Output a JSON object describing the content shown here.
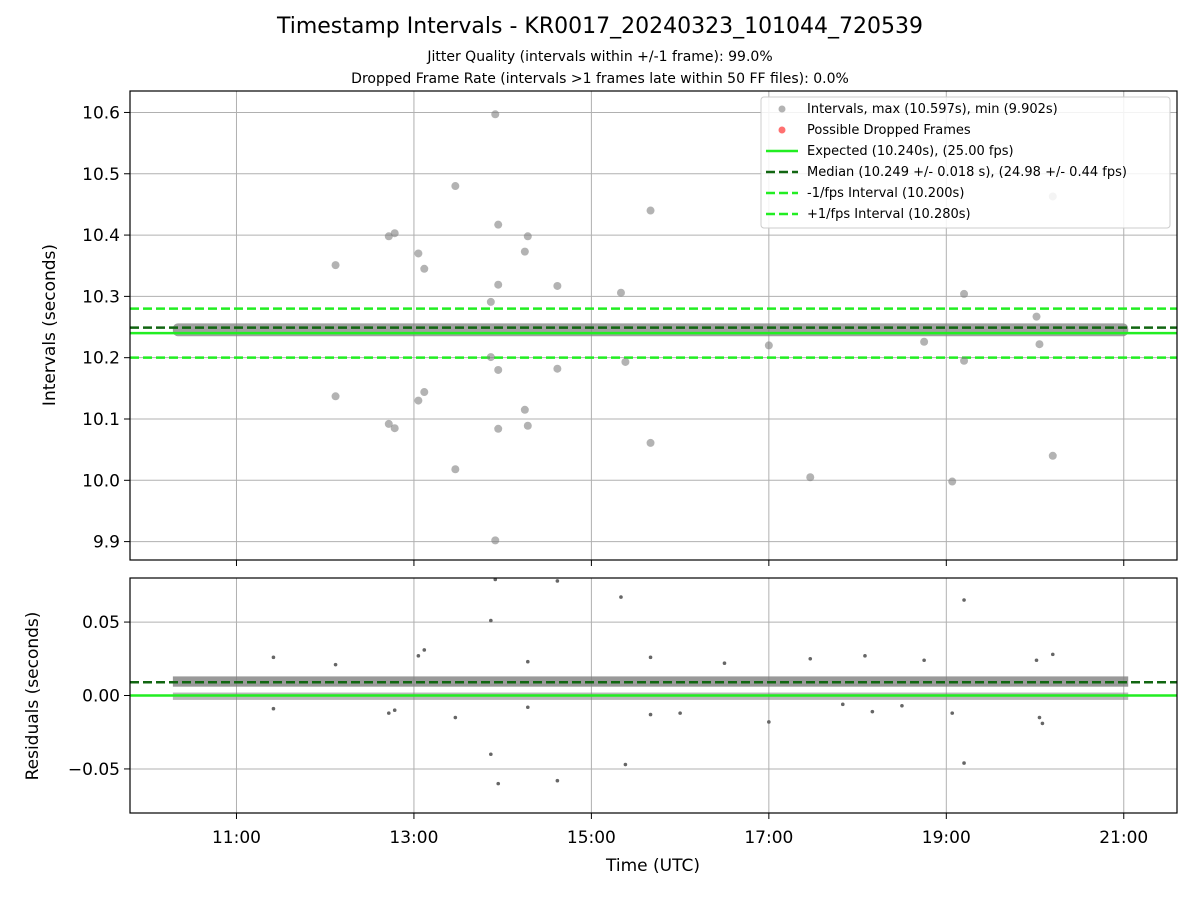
{
  "title": "Timestamp Intervals - KR0017_20240323_101044_720539",
  "subtitle_1": "Jitter Quality (intervals within +/-1 frame): 99.0%",
  "subtitle_2": "Dropped Frame Rate (intervals >1 frames late within 50 FF files): 0.0%",
  "colors": {
    "points": "#808080",
    "dropped": "#ff3333",
    "expected": "#22ee22",
    "median": "#116611",
    "bounds": "#22ee22",
    "grid": "#b0b0b0"
  },
  "chart_data": [
    {
      "type": "scatter",
      "panel": "intervals",
      "xlabel": "",
      "ylabel": "Intervals (seconds)",
      "xlim": [
        "09:48",
        "21:36"
      ],
      "ylim": [
        9.87,
        10.635
      ],
      "yticks": [
        "9.9",
        "10.0",
        "10.1",
        "10.2",
        "10.3",
        "10.4",
        "10.5",
        "10.6"
      ],
      "grid": true,
      "legend_position": "top-right",
      "legend": [
        "Intervals, max (10.597s), min (9.902s)",
        "Possible Dropped Frames",
        "Expected (10.240s), (25.00 fps)",
        "Median (10.249 +/- 0.018 s), (24.98 +/- 0.44 fps)",
        "-1/fps Interval (10.200s)",
        "+1/fps Interval (10.280s)"
      ],
      "reference_lines": {
        "expected": 10.24,
        "median": 10.249,
        "minus_one_frame": 10.2,
        "plus_one_frame": 10.28
      },
      "band": {
        "x_start": "10:17",
        "x_end": "21:03",
        "y_min": 10.235,
        "y_max": 10.256
      },
      "series": [
        {
          "name": "Intervals, max (10.597s), min (9.902s)",
          "points": [
            [
              "13:55",
              10.597
            ],
            [
              "13:55",
              9.902
            ],
            [
              "13:28",
              10.48
            ],
            [
              "13:57",
              10.417
            ],
            [
              "14:17",
              10.398
            ],
            [
              "12:47",
              10.403
            ],
            [
              "12:43",
              10.398
            ],
            [
              "12:07",
              10.351
            ],
            [
              "13:03",
              10.37
            ],
            [
              "13:07",
              10.345
            ],
            [
              "14:15",
              10.373
            ],
            [
              "15:40",
              10.44
            ],
            [
              "13:57",
              10.319
            ],
            [
              "14:37",
              10.317
            ],
            [
              "15:20",
              10.306
            ],
            [
              "13:52",
              10.291
            ],
            [
              "19:12",
              10.304
            ],
            [
              "20:12",
              10.463
            ],
            [
              "12:07",
              10.137
            ],
            [
              "12:43",
              10.092
            ],
            [
              "12:47",
              10.085
            ],
            [
              "13:03",
              10.13
            ],
            [
              "13:07",
              10.144
            ],
            [
              "13:28",
              10.018
            ],
            [
              "13:57",
              10.084
            ],
            [
              "13:57",
              10.18
            ],
            [
              "14:15",
              10.115
            ],
            [
              "14:17",
              10.089
            ],
            [
              "14:37",
              10.182
            ],
            [
              "15:40",
              10.061
            ],
            [
              "17:28",
              10.005
            ],
            [
              "19:04",
              9.998
            ],
            [
              "20:12",
              10.04
            ],
            [
              "19:12",
              10.195
            ],
            [
              "15:23",
              10.193
            ],
            [
              "20:03",
              10.222
            ],
            [
              "13:52",
              10.201
            ],
            [
              "20:01",
              10.267
            ],
            [
              "18:45",
              10.226
            ],
            [
              "17:00",
              10.22
            ]
          ]
        },
        {
          "name": "Possible Dropped Frames",
          "points": []
        }
      ]
    },
    {
      "type": "scatter",
      "panel": "residuals",
      "xlabel": "Time (UTC)",
      "ylabel": "Residuals (seconds)",
      "xlim": [
        "09:48",
        "21:36"
      ],
      "ylim": [
        -0.08,
        0.08
      ],
      "xticks": [
        "11:00",
        "13:00",
        "15:00",
        "17:00",
        "19:00",
        "21:00"
      ],
      "yticks": [
        "−0.05",
        "0.00",
        "0.05"
      ],
      "grid": true,
      "reference_lines": {
        "zero": 0.0,
        "median_offset": 0.009
      },
      "bands": [
        {
          "x_start": "10:17",
          "x_end": "21:03",
          "y_min": 0.006,
          "y_max": 0.013
        },
        {
          "x_start": "10:17",
          "x_end": "21:03",
          "y_min": -0.003,
          "y_max": 0.002
        }
      ],
      "series": [
        {
          "name": "Residuals",
          "points": [
            [
              "13:55",
              0.079
            ],
            [
              "14:37",
              0.078
            ],
            [
              "15:20",
              0.067
            ],
            [
              "19:12",
              0.065
            ],
            [
              "13:52",
              0.051
            ],
            [
              "13:52",
              -0.04
            ],
            [
              "13:57",
              -0.06
            ],
            [
              "14:37",
              -0.058
            ],
            [
              "15:23",
              -0.047
            ],
            [
              "19:12",
              -0.046
            ],
            [
              "11:25",
              0.026
            ],
            [
              "13:07",
              0.031
            ],
            [
              "13:03",
              0.027
            ],
            [
              "14:17",
              0.023
            ],
            [
              "12:07",
              0.021
            ],
            [
              "15:40",
              0.026
            ],
            [
              "17:28",
              0.025
            ],
            [
              "18:45",
              0.024
            ],
            [
              "20:12",
              0.028
            ],
            [
              "20:01",
              0.024
            ],
            [
              "18:05",
              0.027
            ],
            [
              "16:30",
              0.022
            ],
            [
              "12:43",
              -0.012
            ],
            [
              "13:28",
              -0.015
            ],
            [
              "15:40",
              -0.013
            ],
            [
              "17:00",
              -0.018
            ],
            [
              "20:03",
              -0.015
            ],
            [
              "20:05",
              -0.019
            ],
            [
              "19:04",
              -0.012
            ],
            [
              "18:10",
              -0.011
            ],
            [
              "14:17",
              -0.008
            ],
            [
              "16:00",
              -0.012
            ],
            [
              "11:25",
              -0.009
            ],
            [
              "12:47",
              -0.01
            ],
            [
              "17:50",
              -0.006
            ],
            [
              "18:30",
              -0.007
            ]
          ]
        }
      ]
    }
  ]
}
